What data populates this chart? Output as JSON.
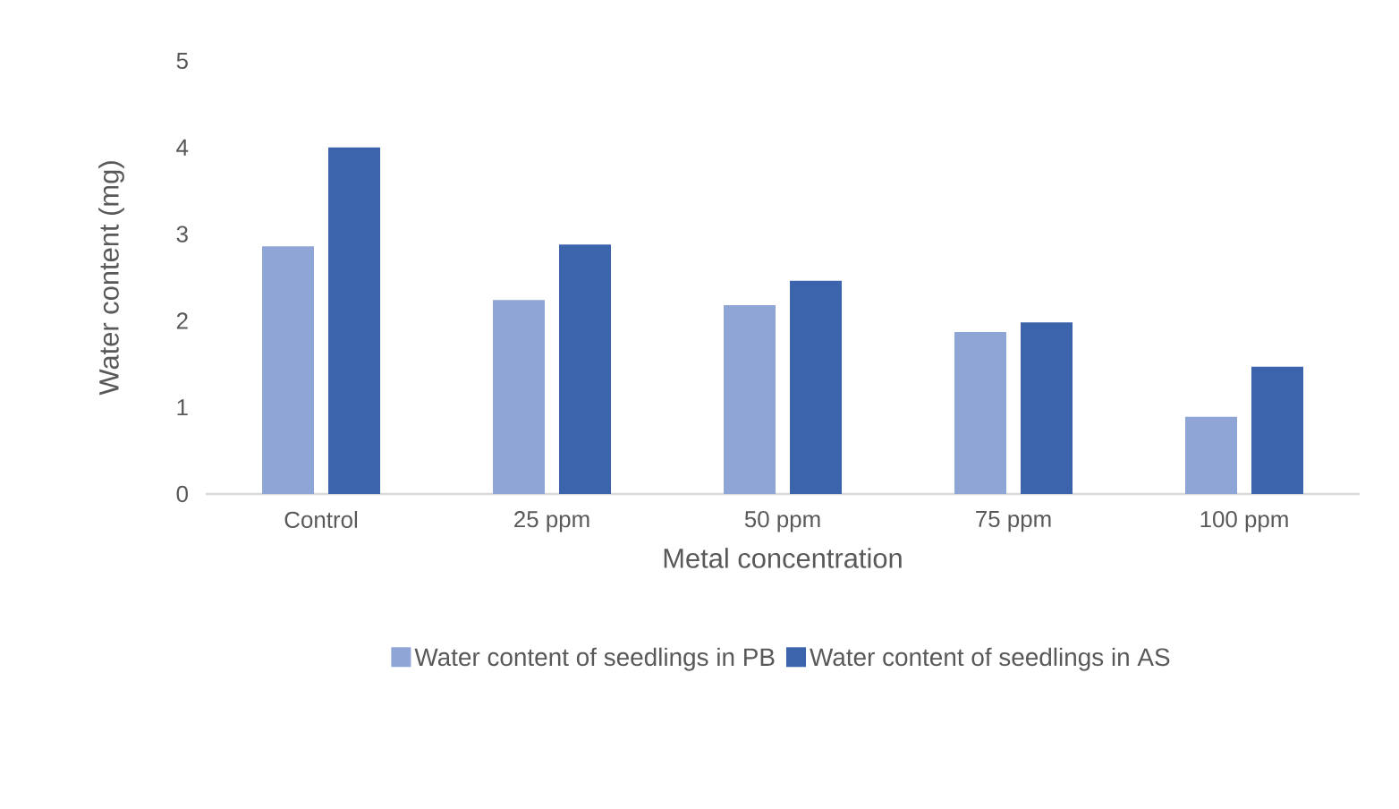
{
  "chart_data": {
    "type": "bar",
    "xlabel": "Metal concentration",
    "ylabel": "Water content (mg)",
    "categories": [
      "Control",
      "25 ppm",
      "50 ppm",
      "75 ppm",
      "100 ppm"
    ],
    "series": [
      {
        "name": "Water content of seedlings in PB",
        "color": "#8fa5d5",
        "values": [
          2.86,
          2.24,
          2.18,
          1.87,
          0.89
        ]
      },
      {
        "name": "Water content  of seedlings in AS",
        "color": "#3c64ac",
        "values": [
          4.0,
          2.88,
          2.46,
          1.98,
          1.47
        ]
      }
    ],
    "ylim": [
      0,
      5
    ],
    "yticks": [
      0,
      1,
      2,
      3,
      4,
      5
    ],
    "grid": false,
    "legend": "bottom"
  }
}
